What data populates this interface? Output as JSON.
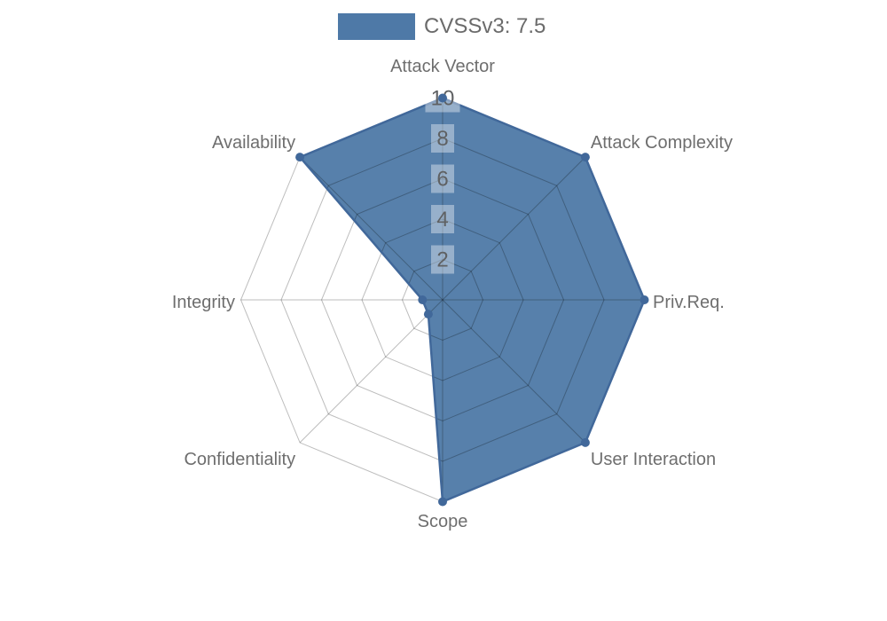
{
  "legend": {
    "label": "CVSSv3: 7.5"
  },
  "chart_data": {
    "type": "radar",
    "categories": [
      "Attack Vector",
      "Attack Complexity",
      "Priv.Req.",
      "User Interaction",
      "Scope",
      "Confidentiality",
      "Integrity",
      "Availability"
    ],
    "series": [
      {
        "name": "CVSSv3: 7.5",
        "values": [
          10,
          10,
          10,
          10,
          10,
          1,
          1,
          10
        ]
      }
    ],
    "ticks": [
      2,
      4,
      6,
      8,
      10
    ],
    "range": [
      0,
      10
    ],
    "grid": "polygon-web",
    "legend_position": "top",
    "colors": {
      "fill": "#4e79a7",
      "fill_opacity": 0.95,
      "stroke": "#41689a",
      "grid_line": "rgba(0,0,0,0.26)",
      "tick_backdrop": "rgba(255,255,255,0.38)",
      "tick_text": "#5f6163",
      "axis_label": "#6e6e6e",
      "legend_text": "#6b6b6b"
    }
  }
}
